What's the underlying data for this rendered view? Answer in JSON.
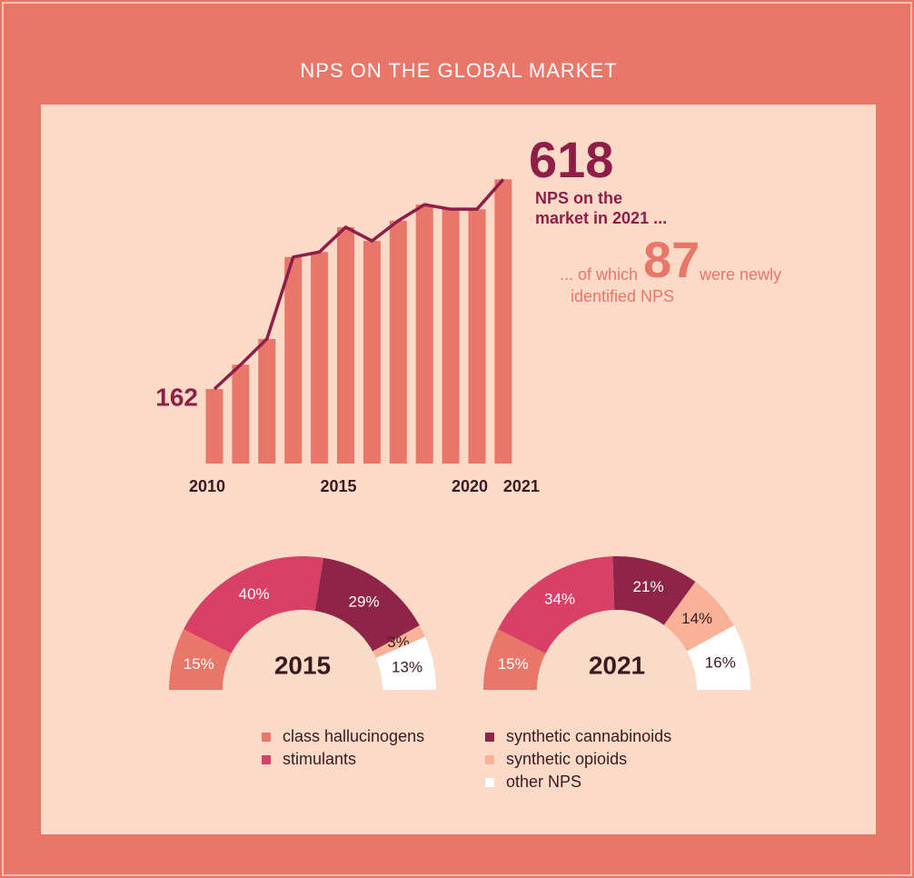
{
  "title": "NPS ON THE GLOBAL MARKET",
  "legend": [
    {
      "name": "class hallucinogens",
      "color": "#e8776a"
    },
    {
      "name": "stimulants",
      "color": "#d94066"
    },
    {
      "name": "synthetic cannabinoids",
      "color": "#8e2548"
    },
    {
      "name": "synthetic opioids",
      "color": "#f7b298"
    },
    {
      "name": "other NPS",
      "color": "#ffffff"
    }
  ],
  "chart_data": [
    {
      "type": "bar",
      "categories": [
        "2010",
        null,
        null,
        null,
        null,
        "2015",
        null,
        null,
        null,
        null,
        "2020",
        "2021"
      ],
      "values": [
        162,
        215,
        271,
        449,
        460,
        514,
        484,
        528,
        563,
        553,
        553,
        618
      ],
      "color": "#e8776a",
      "line_color": "#8e1e48",
      "annotation": {
        "total_lines": [
          "NPS on the",
          "market in 2021 ..."
        ],
        "new_prefix": "... of which",
        "new_value": 87,
        "new_suffix": "were newly",
        "new_line2": "identified NPS"
      }
    },
    {
      "type": "half-donut",
      "title": "2015",
      "values": [
        15,
        40,
        29,
        3,
        13
      ],
      "value_labels": [
        "15%",
        "40%",
        "29%",
        "3%",
        "13%"
      ]
    },
    {
      "type": "half-donut",
      "title": "2021",
      "values": [
        15,
        34,
        21,
        14,
        16
      ],
      "value_labels": [
        "15%",
        "34%",
        "21%",
        "14%",
        "16%"
      ]
    }
  ]
}
